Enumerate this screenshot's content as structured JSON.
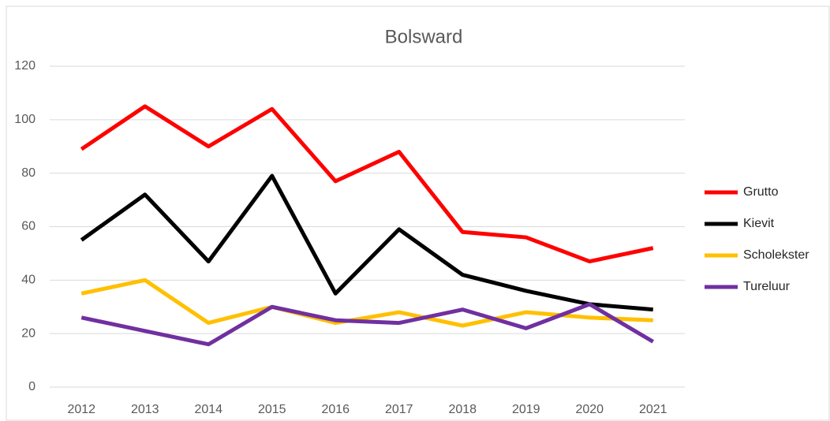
{
  "chart_data": {
    "type": "line",
    "title": "Bolsward",
    "categories": [
      "2012",
      "2013",
      "2014",
      "2015",
      "2016",
      "2017",
      "2018",
      "2019",
      "2020",
      "2021"
    ],
    "series": [
      {
        "name": "Grutto",
        "color": "#ff0000",
        "values": [
          89,
          105,
          90,
          104,
          77,
          88,
          58,
          56,
          47,
          52
        ]
      },
      {
        "name": "Kievit",
        "color": "#000000",
        "values": [
          55,
          72,
          47,
          79,
          35,
          59,
          42,
          36,
          31,
          29
        ]
      },
      {
        "name": "Scholekster",
        "color": "#ffc000",
        "values": [
          35,
          40,
          24,
          30,
          24,
          28,
          23,
          28,
          26,
          25
        ]
      },
      {
        "name": "Tureluur",
        "color": "#7030a0",
        "values": [
          26,
          21,
          16,
          30,
          25,
          24,
          29,
          22,
          31,
          17
        ]
      }
    ],
    "ylim": [
      0,
      120
    ],
    "yticks": [
      0,
      20,
      40,
      60,
      80,
      100,
      120
    ],
    "grid": true,
    "legend": "right"
  }
}
